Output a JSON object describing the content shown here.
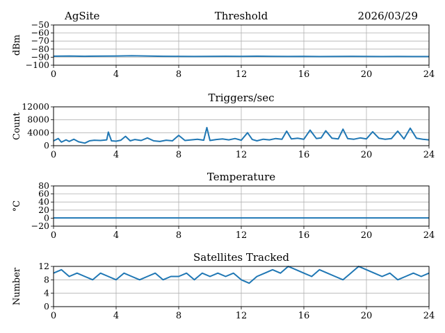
{
  "header": {
    "site": "AgSite",
    "date": "2026/03/29"
  },
  "chart_data": [
    {
      "type": "line",
      "title": "Threshold",
      "ylabel": "dBm",
      "xlim": [
        0,
        24
      ],
      "ylim": [
        -100,
        -50
      ],
      "xticks": [
        "0",
        "4",
        "8",
        "12",
        "16",
        "20",
        "24"
      ],
      "yticks": [
        "−50",
        "−60",
        "−70",
        "−80",
        "−90",
        "−100"
      ],
      "ytick_values": [
        -50,
        -60,
        -70,
        -80,
        -90,
        -100
      ],
      "grid": true,
      "color": "#1f77b4",
      "series": [
        {
          "x": [
            0,
            1,
            2,
            3,
            4,
            5,
            6,
            7,
            8,
            9,
            10,
            11,
            12,
            13,
            14,
            15,
            16,
            17,
            18,
            19,
            20,
            21,
            22,
            23,
            24
          ],
          "y": [
            -88.8,
            -88.6,
            -88.9,
            -88.7,
            -88.5,
            -88.3,
            -88.6,
            -88.9,
            -89.0,
            -89.1,
            -89.0,
            -88.9,
            -89.0,
            -88.8,
            -89.0,
            -89.1,
            -89.0,
            -89.2,
            -89.1,
            -89.0,
            -89.1,
            -89.2,
            -89.1,
            -89.2,
            -89.2
          ]
        }
      ]
    },
    {
      "type": "line",
      "title": "Triggers/sec",
      "ylabel": "Count",
      "xlim": [
        0,
        24
      ],
      "ylim": [
        0,
        12000
      ],
      "xticks": [
        "0",
        "4",
        "8",
        "12",
        "16",
        "20",
        "24"
      ],
      "yticks": [
        "0",
        "4000",
        "8000",
        "12000"
      ],
      "ytick_values": [
        0,
        4000,
        8000,
        12000
      ],
      "grid": true,
      "color": "#1f77b4",
      "series": [
        {
          "x": [
            0,
            0.3,
            0.5,
            0.8,
            1.0,
            1.3,
            1.6,
            2.0,
            2.3,
            2.6,
            3.0,
            3.4,
            3.5,
            3.7,
            4.0,
            4.3,
            4.6,
            4.9,
            5.2,
            5.6,
            6.0,
            6.4,
            6.8,
            7.2,
            7.6,
            8.0,
            8.4,
            8.8,
            9.2,
            9.6,
            9.8,
            10.0,
            10.4,
            10.8,
            11.2,
            11.6,
            12.0,
            12.4,
            12.7,
            13.0,
            13.4,
            13.8,
            14.2,
            14.6,
            14.9,
            15.2,
            15.6,
            16.0,
            16.4,
            16.8,
            17.1,
            17.4,
            17.8,
            18.2,
            18.5,
            18.8,
            19.2,
            19.6,
            20.0,
            20.4,
            20.8,
            21.2,
            21.6,
            22.0,
            22.4,
            22.8,
            23.2,
            23.6,
            24.0
          ],
          "y": [
            1500,
            2200,
            1100,
            1800,
            1300,
            2000,
            1200,
            800,
            1500,
            1700,
            1600,
            1800,
            4200,
            1500,
            1400,
            1700,
            2900,
            1500,
            1900,
            1600,
            2400,
            1500,
            1300,
            1700,
            1500,
            3200,
            1600,
            1800,
            2000,
            1700,
            5600,
            1600,
            1900,
            2100,
            1800,
            2200,
            1700,
            4000,
            1900,
            1500,
            2000,
            1800,
            2200,
            2000,
            4500,
            2100,
            2300,
            2000,
            4800,
            2200,
            2400,
            4600,
            2300,
            2100,
            5100,
            2200,
            2000,
            2400,
            2100,
            4300,
            2300,
            2000,
            2200,
            4500,
            2100,
            5400,
            2300,
            2000,
            1800
          ]
        }
      ]
    },
    {
      "type": "line",
      "title": "Temperature",
      "ylabel": "°C",
      "xlim": [
        0,
        24
      ],
      "ylim": [
        -20,
        80
      ],
      "xticks": [
        "0",
        "4",
        "8",
        "12",
        "16",
        "20",
        "24"
      ],
      "yticks": [
        "80",
        "60",
        "40",
        "20",
        "0",
        "−20"
      ],
      "ytick_values": [
        80,
        60,
        40,
        20,
        0,
        -20
      ],
      "grid": true,
      "color": "#1f77b4",
      "series": [
        {
          "x": [
            0,
            24
          ],
          "y": [
            0.5,
            0.5
          ]
        }
      ]
    },
    {
      "type": "line",
      "title": "Satellites Tracked",
      "ylabel": "Number",
      "xlim": [
        0,
        24
      ],
      "ylim": [
        0,
        12
      ],
      "xticks": [
        "0",
        "4",
        "8",
        "12",
        "16",
        "20",
        "24"
      ],
      "yticks": [
        "12",
        "8",
        "4",
        "0"
      ],
      "ytick_values": [
        12,
        8,
        4,
        0
      ],
      "grid": true,
      "color": "#1f77b4",
      "series": [
        {
          "x": [
            0,
            0.5,
            1.0,
            1.5,
            2.0,
            2.5,
            3.0,
            3.5,
            4.0,
            4.5,
            5.0,
            5.5,
            6.0,
            6.5,
            7.0,
            7.5,
            8.0,
            8.5,
            9.0,
            9.5,
            10.0,
            10.5,
            11.0,
            11.5,
            12.0,
            12.5,
            13.0,
            13.5,
            14.0,
            14.5,
            15.0,
            15.5,
            16.0,
            16.5,
            17.0,
            17.5,
            18.0,
            18.5,
            19.0,
            19.5,
            20.0,
            20.5,
            21.0,
            21.5,
            22.0,
            22.5,
            23.0,
            23.5,
            24.0
          ],
          "y": [
            10,
            11,
            9,
            10,
            9,
            8,
            10,
            9,
            8,
            10,
            9,
            8,
            9,
            10,
            8,
            9,
            9,
            10,
            8,
            10,
            9,
            10,
            9,
            10,
            8,
            7,
            9,
            10,
            11,
            10,
            12,
            11,
            10,
            9,
            11,
            10,
            9,
            8,
            10,
            12,
            11,
            10,
            9,
            10,
            8,
            9,
            10,
            9,
            10
          ]
        }
      ]
    }
  ]
}
